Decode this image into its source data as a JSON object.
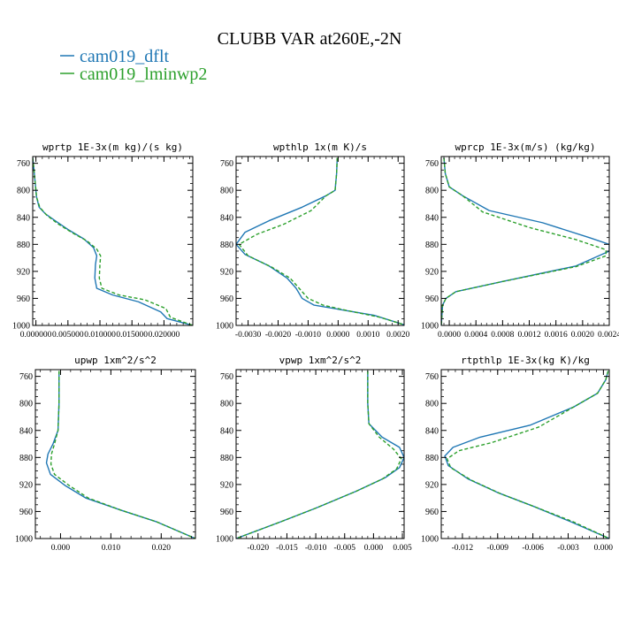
{
  "chart_data": {
    "title": "CLUBB VAR at260E,-2N",
    "legend": [
      {
        "name": "cam019_dflt",
        "color": "#1f77b4",
        "dash": "solid"
      },
      {
        "name": "cam019_lminwp2",
        "color": "#2ca02c",
        "dash": "dashed"
      }
    ],
    "panels": [
      {
        "type": "line",
        "title": "wprtp  1E-3x(m kg)/(s kg)",
        "xlim": [
          -0.0005,
          0.0245
        ],
        "ylim": [
          1000,
          750
        ],
        "yticks": [
          760,
          800,
          840,
          880,
          920,
          960,
          1000
        ],
        "xticks": [
          0.0,
          0.005,
          0.01,
          0.015,
          0.02
        ],
        "xticklabels": [
          "0.000000",
          "0.005000",
          "0.010000",
          "0.015000",
          "0.020000"
        ],
        "series": [
          {
            "name": "cam019_dflt",
            "points": [
              [
                -0.0005,
                752
              ],
              [
                -0.0003,
                770
              ],
              [
                -0.0001,
                790
              ],
              [
                0.0001,
                810
              ],
              [
                0.0005,
                825
              ],
              [
                0.0015,
                835
              ],
              [
                0.003,
                845
              ],
              [
                0.005,
                858
              ],
              [
                0.0075,
                872
              ],
              [
                0.009,
                885
              ],
              [
                0.0095,
                897
              ],
              [
                0.0093,
                910
              ],
              [
                0.0092,
                930
              ],
              [
                0.0095,
                945
              ],
              [
                0.012,
                955
              ],
              [
                0.016,
                965
              ],
              [
                0.0195,
                980
              ],
              [
                0.0205,
                990
              ],
              [
                0.0245,
                1000
              ]
            ]
          },
          {
            "name": "cam019_lminwp2",
            "points": [
              [
                -0.0005,
                752
              ],
              [
                -0.0003,
                770
              ],
              [
                -0.0001,
                790
              ],
              [
                0.0001,
                810
              ],
              [
                0.0006,
                825
              ],
              [
                0.0017,
                837
              ],
              [
                0.0035,
                850
              ],
              [
                0.0057,
                863
              ],
              [
                0.008,
                875
              ],
              [
                0.0095,
                887
              ],
              [
                0.0101,
                897
              ],
              [
                0.01,
                910
              ],
              [
                0.0099,
                930
              ],
              [
                0.0103,
                945
              ],
              [
                0.013,
                955
              ],
              [
                0.017,
                962
              ],
              [
                0.0203,
                975
              ],
              [
                0.021,
                988
              ],
              [
                0.0245,
                1000
              ]
            ]
          }
        ]
      },
      {
        "type": "line",
        "title": "wpthlp  1x(m K)/s",
        "xlim": [
          -0.0034,
          0.0022
        ],
        "ylim": [
          1000,
          750
        ],
        "yticks": [
          760,
          800,
          840,
          880,
          920,
          960,
          1000
        ],
        "xticks": [
          -0.003,
          -0.002,
          -0.001,
          0.0,
          0.001,
          0.002
        ],
        "xticklabels": [
          "-0.0030",
          "-0.0020",
          "-0.0010",
          "0.0000",
          "0.0010",
          "0.0020"
        ],
        "series": [
          {
            "name": "cam019_dflt",
            "points": [
              [
                -3e-05,
                752
              ],
              [
                -5e-05,
                775
              ],
              [
                -0.0001,
                800
              ],
              [
                -0.0004,
                808
              ],
              [
                -0.0012,
                825
              ],
              [
                -0.0023,
                845
              ],
              [
                -0.0031,
                862
              ],
              [
                -0.0034,
                880
              ],
              [
                -0.0031,
                895
              ],
              [
                -0.0023,
                912
              ],
              [
                -0.0017,
                930
              ],
              [
                -0.0014,
                945
              ],
              [
                -0.0012,
                960
              ],
              [
                -0.0008,
                970
              ],
              [
                0.0,
                976
              ],
              [
                0.0012,
                985
              ],
              [
                0.0022,
                999
              ]
            ]
          },
          {
            "name": "cam019_lminwp2",
            "points": [
              [
                -3e-05,
                752
              ],
              [
                -5e-05,
                775
              ],
              [
                -0.0001,
                800
              ],
              [
                -0.0004,
                808
              ],
              [
                -0.0009,
                830
              ],
              [
                -0.0018,
                850
              ],
              [
                -0.0027,
                865
              ],
              [
                -0.0033,
                880
              ],
              [
                -0.003,
                897
              ],
              [
                -0.0022,
                914
              ],
              [
                -0.0016,
                930
              ],
              [
                -0.0013,
                945
              ],
              [
                -0.001,
                960
              ],
              [
                -0.0005,
                970
              ],
              [
                0.0003,
                978
              ],
              [
                0.0014,
                988
              ],
              [
                0.0022,
                999
              ]
            ]
          }
        ]
      },
      {
        "type": "line",
        "title": "wprcp  1E-3x(m/s) (kg/kg)",
        "xlim": [
          -0.00012,
          0.0024
        ],
        "ylim": [
          1000,
          750
        ],
        "yticks": [
          760,
          800,
          840,
          880,
          920,
          960,
          1000
        ],
        "xticks": [
          0.0,
          0.0004,
          0.0008,
          0.0012,
          0.0016,
          0.002,
          0.0024
        ],
        "xticklabels": [
          "0.0000",
          "0.0004",
          "0.0008",
          "0.0012",
          "0.0016",
          "0.0020",
          "0.0024"
        ],
        "series": [
          {
            "name": "cam019_dflt",
            "points": [
              [
                -8e-05,
                752
              ],
              [
                -6e-05,
                775
              ],
              [
                0.0,
                795
              ],
              [
                0.0002,
                808
              ],
              [
                0.0006,
                830
              ],
              [
                0.0014,
                848
              ],
              [
                0.0021,
                870
              ],
              [
                0.0024,
                880
              ],
              [
                0.0024,
                890
              ],
              [
                0.0019,
                912
              ],
              [
                0.0008,
                935
              ],
              [
                0.0001,
                950
              ],
              [
                -5e-05,
                960
              ],
              [
                -0.0001,
                970
              ],
              [
                -0.00012,
                1000
              ]
            ]
          },
          {
            "name": "cam019_lminwp2",
            "points": [
              [
                -8e-05,
                752
              ],
              [
                -6e-05,
                775
              ],
              [
                0.0,
                795
              ],
              [
                0.0002,
                808
              ],
              [
                0.0005,
                832
              ],
              [
                0.0012,
                855
              ],
              [
                0.0019,
                873
              ],
              [
                0.00235,
                888
              ],
              [
                0.00235,
                897
              ],
              [
                0.0019,
                913
              ],
              [
                0.0008,
                935
              ],
              [
                0.0001,
                950
              ],
              [
                -5e-05,
                960
              ],
              [
                -0.0001,
                970
              ],
              [
                -0.00012,
                1000
              ]
            ]
          }
        ]
      },
      {
        "type": "line",
        "title": "upwp  1xm^2/s^2",
        "xlim": [
          -0.005,
          0.0268
        ],
        "ylim": [
          1000,
          750
        ],
        "yticks": [
          760,
          800,
          840,
          880,
          920,
          960,
          1000
        ],
        "xticks": [
          0.0,
          0.01,
          0.02
        ],
        "xticklabels": [
          "0.000",
          "0.010",
          "0.020"
        ],
        "series": [
          {
            "name": "cam019_dflt",
            "points": [
              [
                -0.0003,
                752
              ],
              [
                -0.0003,
                800
              ],
              [
                -0.0005,
                840
              ],
              [
                -0.0015,
                860
              ],
              [
                -0.0025,
                875
              ],
              [
                -0.0028,
                888
              ],
              [
                -0.002,
                905
              ],
              [
                0.001,
                922
              ],
              [
                0.005,
                940
              ],
              [
                0.012,
                958
              ],
              [
                0.019,
                975
              ],
              [
                0.0268,
                1000
              ]
            ]
          },
          {
            "name": "cam019_lminwp2",
            "points": [
              [
                -0.0003,
                752
              ],
              [
                -0.0003,
                800
              ],
              [
                -0.0005,
                840
              ],
              [
                -0.0012,
                860
              ],
              [
                -0.0018,
                875
              ],
              [
                -0.0019,
                890
              ],
              [
                -0.0012,
                905
              ],
              [
                0.0018,
                922
              ],
              [
                0.0055,
                940
              ],
              [
                0.012,
                958
              ],
              [
                0.019,
                975
              ],
              [
                0.0268,
                1000
              ]
            ]
          }
        ]
      },
      {
        "type": "line",
        "title": "vpwp  1xm^2/s^2",
        "xlim": [
          -0.0238,
          0.0053
        ],
        "ylim": [
          1000,
          750
        ],
        "yticks": [
          760,
          800,
          840,
          880,
          920,
          960,
          1000
        ],
        "xticks": [
          -0.02,
          -0.015,
          -0.01,
          -0.005,
          0.0,
          0.005
        ],
        "xticklabels": [
          "-0.020",
          "-0.015",
          "-0.010",
          "-0.005",
          "0.000",
          "0.005"
        ],
        "series": [
          {
            "name": "cam019_dflt",
            "points": [
              [
                -0.001,
                752
              ],
              [
                -0.001,
                800
              ],
              [
                -0.0008,
                830
              ],
              [
                0.0015,
                850
              ],
              [
                0.0045,
                865
              ],
              [
                0.0053,
                880
              ],
              [
                0.0045,
                895
              ],
              [
                0.002,
                910
              ],
              [
                -0.003,
                930
              ],
              [
                -0.01,
                955
              ],
              [
                -0.016,
                975
              ],
              [
                -0.0238,
                1000
              ]
            ]
          },
          {
            "name": "cam019_lminwp2",
            "points": [
              [
                -0.001,
                752
              ],
              [
                -0.001,
                800
              ],
              [
                -0.0008,
                830
              ],
              [
                0.001,
                850
              ],
              [
                0.0035,
                868
              ],
              [
                0.0048,
                882
              ],
              [
                0.004,
                897
              ],
              [
                0.0015,
                912
              ],
              [
                -0.003,
                930
              ],
              [
                -0.01,
                955
              ],
              [
                -0.016,
                975
              ],
              [
                -0.0238,
                1000
              ]
            ]
          }
        ]
      },
      {
        "type": "line",
        "title": "rtpthlp  1E-3x(kg K)/kg",
        "xlim": [
          -0.0138,
          0.0005
        ],
        "ylim": [
          1000,
          750
        ],
        "yticks": [
          760,
          800,
          840,
          880,
          920,
          960,
          1000
        ],
        "xticks": [
          -0.012,
          -0.009,
          -0.006,
          -0.003,
          0.0
        ],
        "xticklabels": [
          "-0.012",
          "-0.009",
          "-0.006",
          "-0.003",
          "0.000"
        ],
        "series": [
          {
            "name": "cam019_dflt",
            "points": [
              [
                0.0004,
                752
              ],
              [
                0.0002,
                765
              ],
              [
                -0.0005,
                785
              ],
              [
                -0.0025,
                805
              ],
              [
                -0.0062,
                832
              ],
              [
                -0.0105,
                850
              ],
              [
                -0.0128,
                865
              ],
              [
                -0.0135,
                878
              ],
              [
                -0.0132,
                892
              ],
              [
                -0.0115,
                912
              ],
              [
                -0.009,
                932
              ],
              [
                -0.006,
                952
              ],
              [
                -0.0028,
                975
              ],
              [
                0.0005,
                1000
              ]
            ]
          },
          {
            "name": "cam019_lminwp2",
            "points": [
              [
                0.0004,
                752
              ],
              [
                0.0002,
                765
              ],
              [
                -0.0005,
                785
              ],
              [
                -0.0025,
                805
              ],
              [
                -0.0055,
                835
              ],
              [
                -0.0095,
                858
              ],
              [
                -0.0123,
                870
              ],
              [
                -0.0133,
                882
              ],
              [
                -0.013,
                895
              ],
              [
                -0.0112,
                914
              ],
              [
                -0.0087,
                934
              ],
              [
                -0.0057,
                954
              ],
              [
                -0.0026,
                975
              ],
              [
                0.0005,
                1000
              ]
            ]
          }
        ]
      }
    ]
  }
}
